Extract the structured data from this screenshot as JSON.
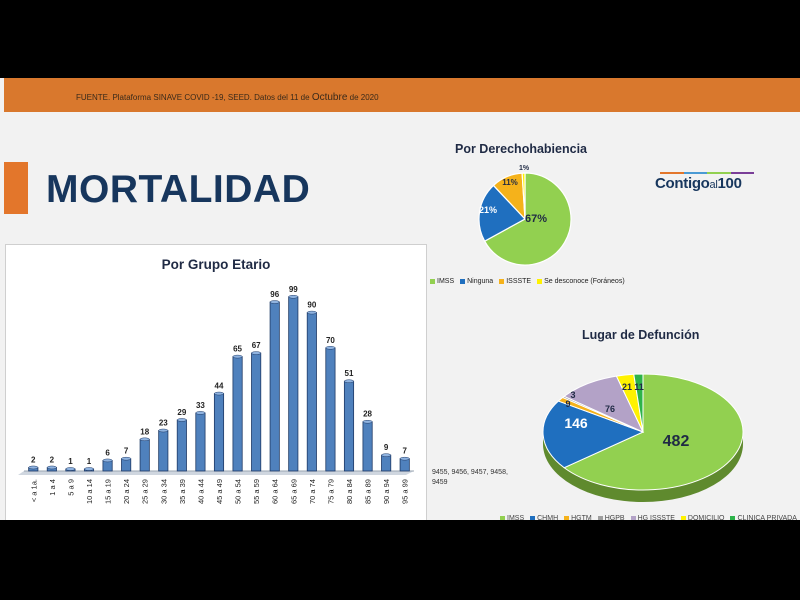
{
  "header": {
    "source_prefix": "FUENTE. Plataforma SINAVE COVID -19, SEED. Datos del 11 de",
    "source_month": "Octubre",
    "source_year": "de 2020"
  },
  "title": "MORTALIDAD",
  "logo": {
    "part1": "Contigo",
    "part2": "al",
    "part3": "100"
  },
  "colors": {
    "header_bar": "#d9782d",
    "title": "#17365d",
    "bar_fill": "#4f81bd",
    "green": "#92d050",
    "blue": "#1f6fbf",
    "orange": "#f5b21b",
    "yellow": "#fff200"
  },
  "chart_data": [
    {
      "type": "bar",
      "title": "Por Grupo Etario",
      "categories": [
        "< a 1a.",
        "1 a 4",
        "5 a 9",
        "10 a 14",
        "15 a 19",
        "20 a 24",
        "25 a 29",
        "30 a 34",
        "35 a 39",
        "40 a 44",
        "45 a 49",
        "50 a 54",
        "55 a 59",
        "60 a 64",
        "65 a 69",
        "70 a 74",
        "75 a 79",
        "80 a 84",
        "85 a 89",
        "90 a 94",
        "95 a 99"
      ],
      "values": [
        2,
        2,
        1,
        1,
        6,
        7,
        18,
        23,
        29,
        33,
        44,
        65,
        67,
        96,
        99,
        90,
        70,
        51,
        28,
        9,
        7
      ],
      "ylim": [
        0,
        100
      ],
      "grid": false
    },
    {
      "type": "pie",
      "title": "Por Derechohabiencia",
      "labels": [
        "IMSS",
        "Ninguna",
        "ISSSTE",
        "Se desconoce (Foráneos)"
      ],
      "values": [
        67,
        21,
        11,
        1
      ],
      "value_labels": [
        "67%",
        "21%",
        "11%",
        "1%"
      ],
      "colors": [
        "#92d050",
        "#1f6fbf",
        "#f5b21b",
        "#fff200"
      ],
      "legend": "bottom"
    },
    {
      "type": "pie",
      "title": "Lugar de Defunción",
      "labels": [
        "IMSS",
        "CHMH",
        "HGTM",
        "HGPB",
        "HG ISSSTE",
        "DOMICILIO",
        "CLINICA PRIVADA"
      ],
      "values": [
        482,
        146,
        9,
        3,
        76,
        21,
        11
      ],
      "colors": [
        "#92d050",
        "#1f6fbf",
        "#f5b21b",
        "#9e9e9e",
        "#b3a2c7",
        "#fff200",
        "#2db34a"
      ],
      "legend": "bottom"
    }
  ],
  "pie2_note": "9455, 9456, 9457, 9458, 9459"
}
